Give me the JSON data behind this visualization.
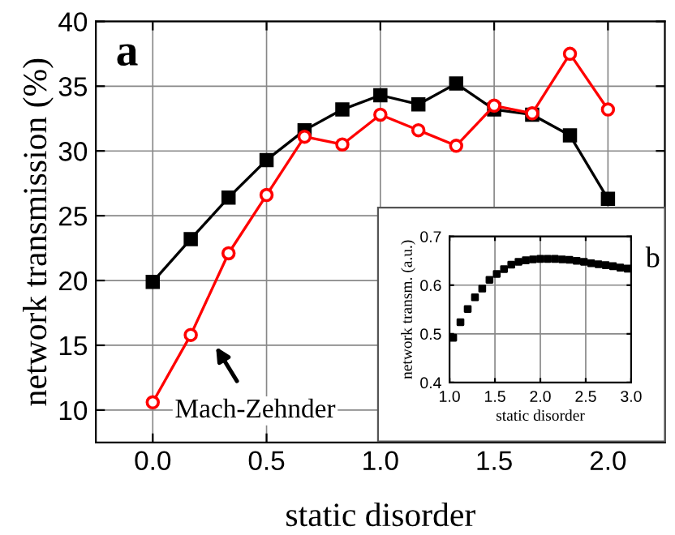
{
  "chart_data": [
    {
      "type": "line",
      "xlabel": "static disorder",
      "ylabel": "network transmission (%)",
      "x": [
        0,
        0.167,
        0.333,
        0.5,
        0.667,
        0.833,
        1.0,
        1.167,
        1.333,
        1.5,
        1.667,
        1.833,
        2.0
      ],
      "series": [
        {
          "color": "#000000",
          "marker": "square",
          "values": [
            19.9,
            23.2,
            26.4,
            29.3,
            31.6,
            33.2,
            34.3,
            33.6,
            35.2,
            33.2,
            32.8,
            31.2,
            26.3
          ]
        },
        {
          "color": "#ff0000",
          "marker": "circle",
          "values": [
            10.6,
            15.8,
            22.1,
            26.6,
            31.1,
            30.5,
            32.8,
            31.6,
            30.4,
            33.5,
            32.9,
            37.5,
            33.2
          ]
        }
      ],
      "xlim": [
        -0.25,
        2.25
      ],
      "ylim": [
        7.5,
        40
      ],
      "xticks": [
        {
          "value": 0,
          "label": "0.0"
        },
        {
          "value": 0.5,
          "label": "0.5"
        },
        {
          "value": 1.0,
          "label": "1.0"
        },
        {
          "value": 1.5,
          "label": "1.5"
        },
        {
          "value": 2.0,
          "label": "2.0"
        }
      ],
      "yticks": [
        10,
        15,
        20,
        25,
        30,
        35,
        40
      ],
      "grid": true,
      "legend": false,
      "annotations": [
        "a",
        "Mach-Zehnder"
      ]
    },
    {
      "type": "scatter",
      "xlabel": "static disorder",
      "ylabel": "network transm. (a.u.)",
      "x": [
        1.04,
        1.12,
        1.2,
        1.28,
        1.36,
        1.44,
        1.52,
        1.6,
        1.68,
        1.76,
        1.84,
        1.92,
        2.0,
        2.08,
        2.16,
        2.24,
        2.32,
        2.4,
        2.48,
        2.56,
        2.64,
        2.72,
        2.8,
        2.88,
        2.96
      ],
      "series": [
        {
          "color": "#000000",
          "marker": "square",
          "values": [
            0.492,
            0.524,
            0.551,
            0.575,
            0.593,
            0.611,
            0.623,
            0.633,
            0.642,
            0.648,
            0.651,
            0.653,
            0.654,
            0.654,
            0.654,
            0.653,
            0.652,
            0.65,
            0.648,
            0.645,
            0.643,
            0.641,
            0.639,
            0.636,
            0.634
          ]
        }
      ],
      "xlim": [
        1.0,
        3.0
      ],
      "ylim": [
        0.4,
        0.7
      ],
      "xticks": [
        {
          "value": 1.0,
          "label": "1.0"
        },
        {
          "value": 1.5,
          "label": "1.5"
        },
        {
          "value": 2.0,
          "label": "2.0"
        },
        {
          "value": 2.5,
          "label": "2.5"
        },
        {
          "value": 3.0,
          "label": "3.0"
        }
      ],
      "yticks": [
        {
          "value": 0.4,
          "label": "0.4"
        },
        {
          "value": 0.5,
          "label": "0.5"
        },
        {
          "value": 0.6,
          "label": "0.6"
        },
        {
          "value": 0.7,
          "label": "0.7"
        }
      ],
      "grid": true,
      "legend": false,
      "annotations": [
        "b"
      ]
    }
  ]
}
